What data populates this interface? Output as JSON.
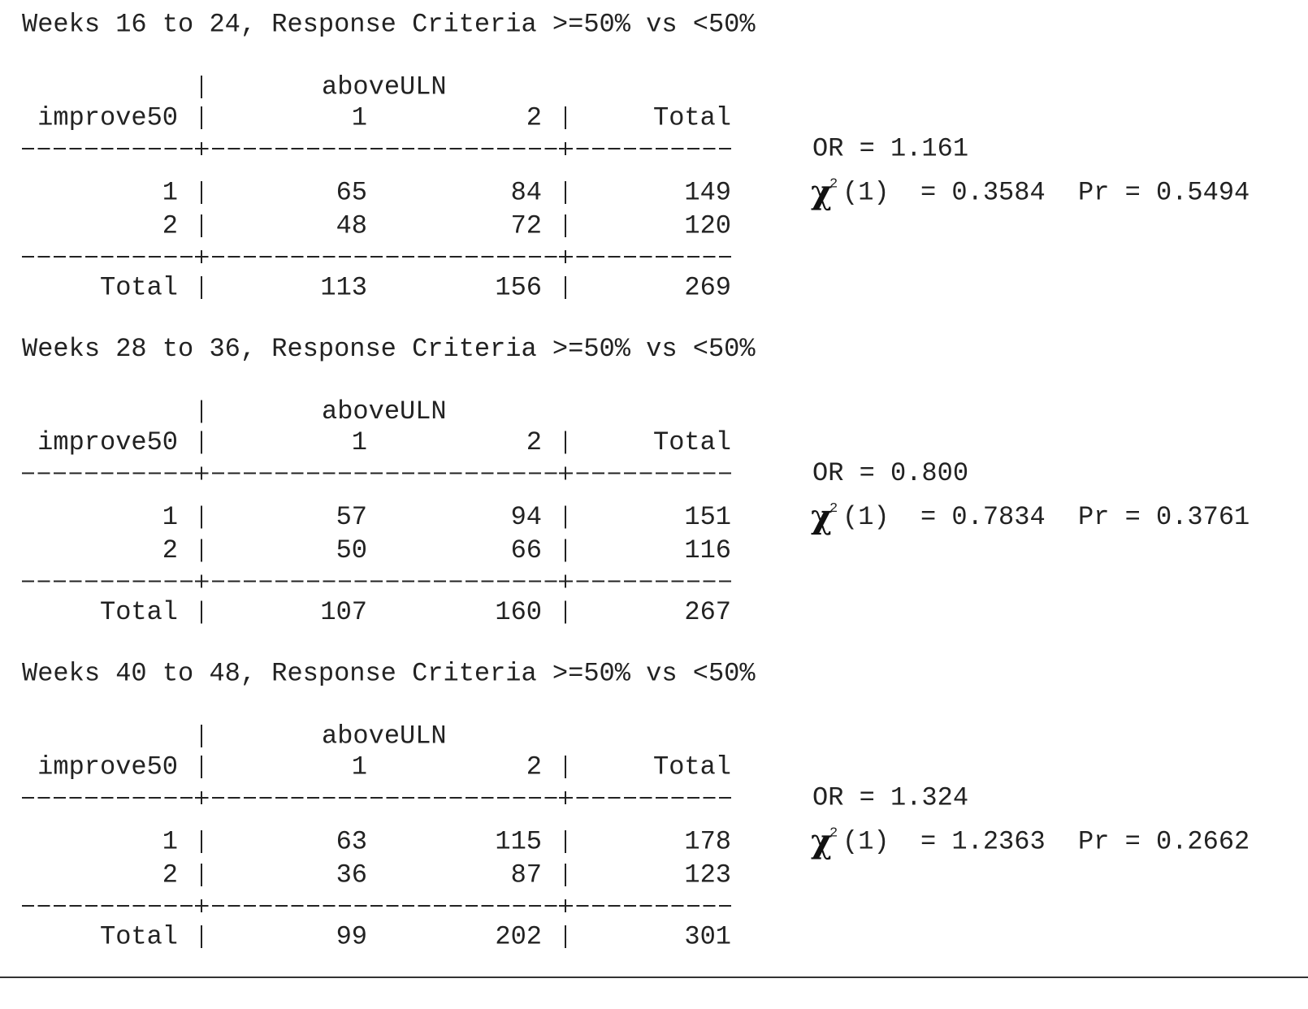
{
  "sections": [
    {
      "title": "Weeks 16 to 24, Response Criteria >=50% vs <50%",
      "column_variable": "aboveULN",
      "row_variable": "improve50",
      "columns": [
        "1",
        "2",
        "Total"
      ],
      "rows": [
        {
          "label": "1",
          "cells": [
            65,
            84,
            149
          ]
        },
        {
          "label": "2",
          "cells": [
            48,
            72,
            120
          ]
        },
        {
          "label": "Total",
          "cells": [
            113,
            156,
            269
          ]
        }
      ],
      "odds_ratio": "OR = 1.161",
      "chi2_symbol": "χ",
      "chi2_superscript": "2",
      "chi2_statistic": "(1)  = 0.3584",
      "p_value": "Pr = 0.5494"
    },
    {
      "title": "Weeks 28 to 36, Response Criteria >=50% vs <50%",
      "column_variable": "aboveULN",
      "row_variable": "improve50",
      "columns": [
        "1",
        "2",
        "Total"
      ],
      "rows": [
        {
          "label": "1",
          "cells": [
            57,
            94,
            151
          ]
        },
        {
          "label": "2",
          "cells": [
            50,
            66,
            116
          ]
        },
        {
          "label": "Total",
          "cells": [
            107,
            160,
            267
          ]
        }
      ],
      "odds_ratio": "OR = 0.800",
      "chi2_symbol": "χ",
      "chi2_superscript": "2",
      "chi2_statistic": "(1)  = 0.7834",
      "p_value": "Pr = 0.3761"
    },
    {
      "title": "Weeks 40 to 48, Response Criteria >=50% vs <50%",
      "column_variable": "aboveULN",
      "row_variable": "improve50",
      "columns": [
        "1",
        "2",
        "Total"
      ],
      "rows": [
        {
          "label": "1",
          "cells": [
            63,
            115,
            178
          ]
        },
        {
          "label": "2",
          "cells": [
            36,
            87,
            123
          ]
        },
        {
          "label": "Total",
          "cells": [
            99,
            202,
            301
          ]
        }
      ],
      "odds_ratio": "OR = 1.324",
      "chi2_symbol": "χ",
      "chi2_superscript": "2",
      "chi2_statistic": "(1)  = 1.2363",
      "p_value": "Pr = 0.2662"
    }
  ]
}
